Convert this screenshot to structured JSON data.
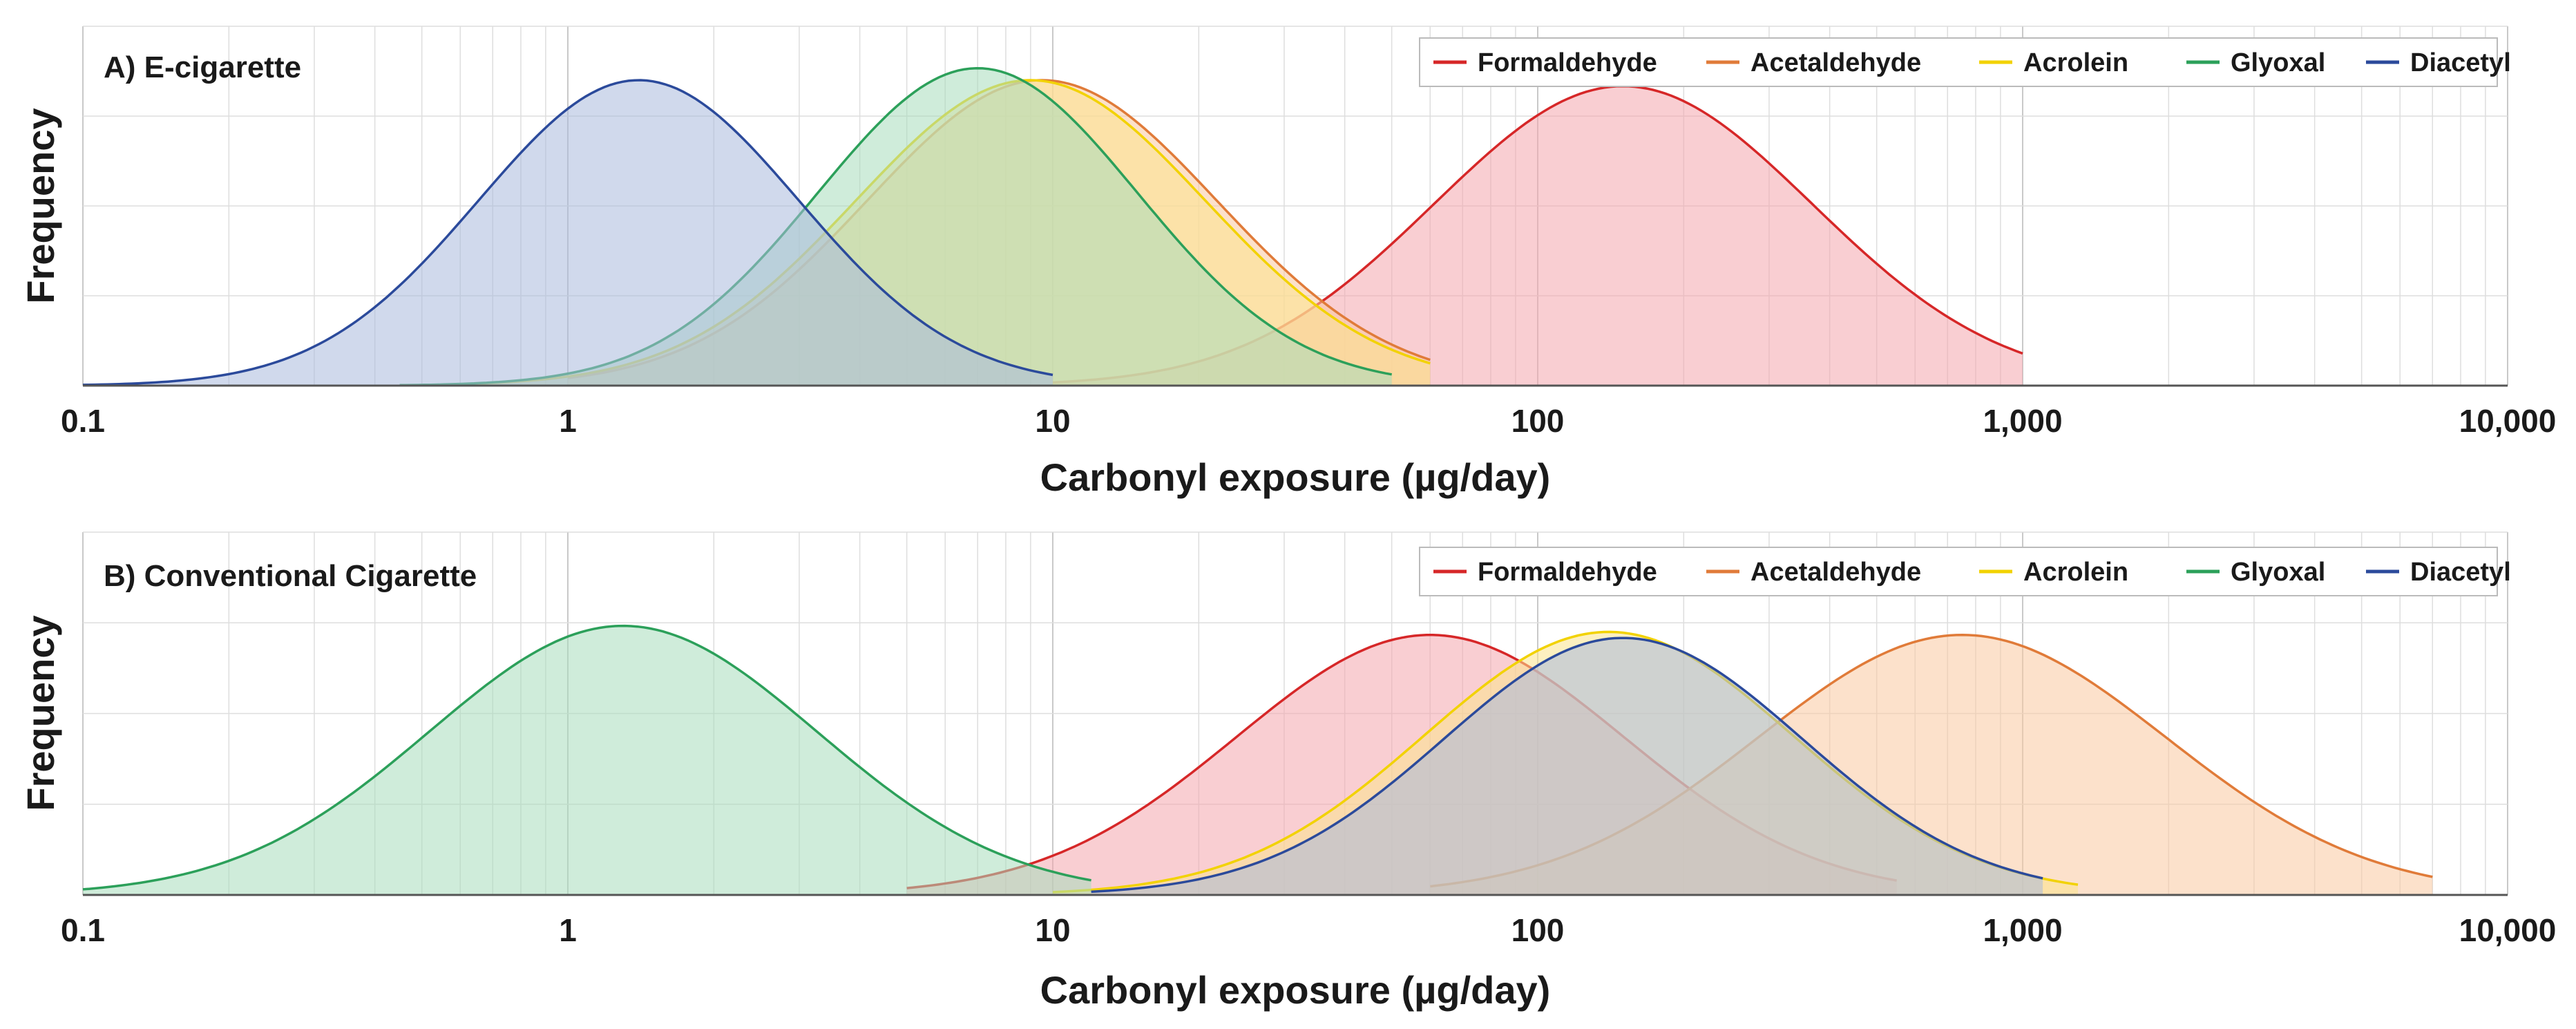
{
  "chart_data": [
    {
      "type": "area",
      "title": "A) E-cigarette",
      "xlabel": "Carbonyl exposure (µg/day)",
      "ylabel": "Frequency",
      "xscale": "log",
      "xlim": [
        0.1,
        10000
      ],
      "xticks": [
        0.1,
        1,
        10,
        100,
        1000,
        10000
      ],
      "xtick_labels": [
        "0.1",
        "1",
        "10",
        "100",
        "1,000",
        "10,000"
      ],
      "ylim": [
        0,
        1.2
      ],
      "grid": true,
      "legend_position": "top-right",
      "series": [
        {
          "name": "Formaldehyde",
          "color": "#d62728",
          "fill": "#f4a6ad",
          "mode": 150,
          "sigma": 0.39,
          "height": 1.0,
          "range": [
            10,
            1000
          ]
        },
        {
          "name": "Acetaldehyde",
          "color": "#e07b39",
          "fill": "#f9c9a1",
          "mode": 9.5,
          "sigma": 0.36,
          "height": 1.02,
          "range": [
            1,
            60
          ]
        },
        {
          "name": "Acrolein",
          "color": "#f2d200",
          "fill": "#fbe38d",
          "mode": 9.0,
          "sigma": 0.36,
          "height": 1.02,
          "range": [
            0.6,
            60
          ]
        },
        {
          "name": "Glyoxal",
          "color": "#2ca05a",
          "fill": "#a8dcbb",
          "mode": 7.0,
          "sigma": 0.33,
          "height": 1.06,
          "range": [
            0.45,
            50
          ]
        },
        {
          "name": "Diacetyl",
          "color": "#2b4a9b",
          "fill": "#a9b9dc",
          "mode": 1.4,
          "sigma": 0.33,
          "height": 1.02,
          "range": [
            0.1,
            10
          ]
        }
      ]
    },
    {
      "type": "area",
      "title": "B) Conventional Cigarette",
      "xlabel": "Carbonyl exposure (µg/day)",
      "ylabel": "Frequency",
      "xscale": "log",
      "xlim": [
        0.1,
        10000
      ],
      "xticks": [
        0.1,
        1,
        10,
        100,
        1000,
        10000
      ],
      "xtick_labels": [
        "0.1",
        "1",
        "10",
        "100",
        "1,000",
        "10,000"
      ],
      "ylim": [
        0,
        1.2
      ],
      "grid": true,
      "legend_position": "top-right",
      "series": [
        {
          "name": "Formaldehyde",
          "color": "#d62728",
          "fill": "#f4a6ad",
          "mode": 60,
          "sigma": 0.4,
          "height": 0.86,
          "range": [
            5,
            550
          ]
        },
        {
          "name": "Acetaldehyde",
          "color": "#e07b39",
          "fill": "#f9c9a1",
          "mode": 750,
          "sigma": 0.42,
          "height": 0.86,
          "range": [
            60,
            7000
          ]
        },
        {
          "name": "Acrolein",
          "color": "#f2d200",
          "fill": "#fbe38d",
          "mode": 140,
          "sigma": 0.38,
          "height": 0.87,
          "range": [
            10,
            1300
          ]
        },
        {
          "name": "Glyoxal",
          "color": "#2ca05a",
          "fill": "#a8dcbb",
          "mode": 1.3,
          "sigma": 0.4,
          "height": 0.89,
          "range": [
            0.1,
            12
          ]
        },
        {
          "name": "Diacetyl",
          "color": "#2b4a9b",
          "fill": "#a9b9dc",
          "mode": 150,
          "sigma": 0.37,
          "height": 0.85,
          "range": [
            12,
            1100
          ]
        }
      ]
    }
  ]
}
